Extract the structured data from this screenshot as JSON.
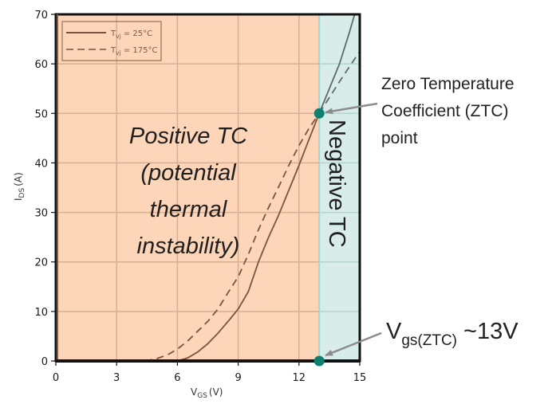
{
  "chart_data": {
    "type": "line",
    "title": "",
    "xlabel": "V",
    "xlabel_sub": "GS",
    "xlabel_unit": "(V)",
    "ylabel": "I",
    "ylabel_sub": "DS",
    "ylabel_unit": "(A)",
    "xlim": [
      0,
      15
    ],
    "ylim": [
      0,
      70
    ],
    "xticks": [
      0,
      3,
      6,
      9,
      12,
      15
    ],
    "yticks": [
      0,
      10,
      20,
      30,
      40,
      50,
      60,
      70
    ],
    "grid": true,
    "legend_position": "top-left",
    "series": [
      {
        "name": "T_vj = 25°C",
        "legend_main": "T",
        "legend_sub": "vj",
        "legend_rest": " = 25°C",
        "style": "solid",
        "x": [
          6.0,
          6.5,
          7.0,
          7.5,
          8.0,
          8.5,
          9.0,
          9.5,
          10.0,
          10.5,
          11.0,
          11.5,
          12.0,
          12.5,
          13.0,
          13.5,
          14.0,
          14.5,
          14.75
        ],
        "y": [
          0,
          0.6,
          1.8,
          3.5,
          5.6,
          8.0,
          10.5,
          14.0,
          20.0,
          25.0,
          29.5,
          34.5,
          39.5,
          44.8,
          50.0,
          55.0,
          60.0,
          66.5,
          70.0
        ]
      },
      {
        "name": "T_vj = 175°C",
        "legend_main": "T",
        "legend_sub": "vj",
        "legend_rest": " = 175°C",
        "style": "dashed",
        "x": [
          4.4,
          5.0,
          5.5,
          6.0,
          6.5,
          7.0,
          7.5,
          8.0,
          8.5,
          9.0,
          9.5,
          10.0,
          10.5,
          11.0,
          11.5,
          12.0,
          12.5,
          13.0,
          13.5,
          14.0,
          14.5,
          15.0
        ],
        "y": [
          0,
          0.5,
          1.2,
          2.4,
          4.0,
          6.0,
          8.0,
          10.5,
          13.8,
          17.0,
          21.5,
          26.5,
          31.0,
          35.2,
          39.5,
          43.5,
          47.0,
          50.0,
          53.2,
          56.4,
          59.5,
          62.5
        ]
      }
    ],
    "regions": [
      {
        "name": "Positive TC",
        "x_range": [
          0,
          13
        ],
        "color": "#fdd5b8",
        "label_lines": [
          "Positive TC",
          "(potential",
          "thermal",
          "instability)"
        ]
      },
      {
        "name": "Negative TC",
        "x_range": [
          13,
          15
        ],
        "color": "#d8ecea",
        "label": "Negative TC"
      }
    ],
    "points": [
      {
        "name": "ZTC point",
        "x": 13,
        "y": 50,
        "color": "#0f7f6e"
      },
      {
        "name": "Vgs(ZTC)",
        "x": 13,
        "y": 0,
        "color": "#0f7f6e"
      }
    ],
    "annotations": [
      {
        "target": "ZTC point",
        "lines": [
          "Zero Temperature",
          "Coefficient (ZTC)",
          "point"
        ]
      },
      {
        "target": "Vgs(ZTC)",
        "main": "V",
        "sub": "gs(ZTC)",
        "rest": " ~13V"
      }
    ]
  }
}
